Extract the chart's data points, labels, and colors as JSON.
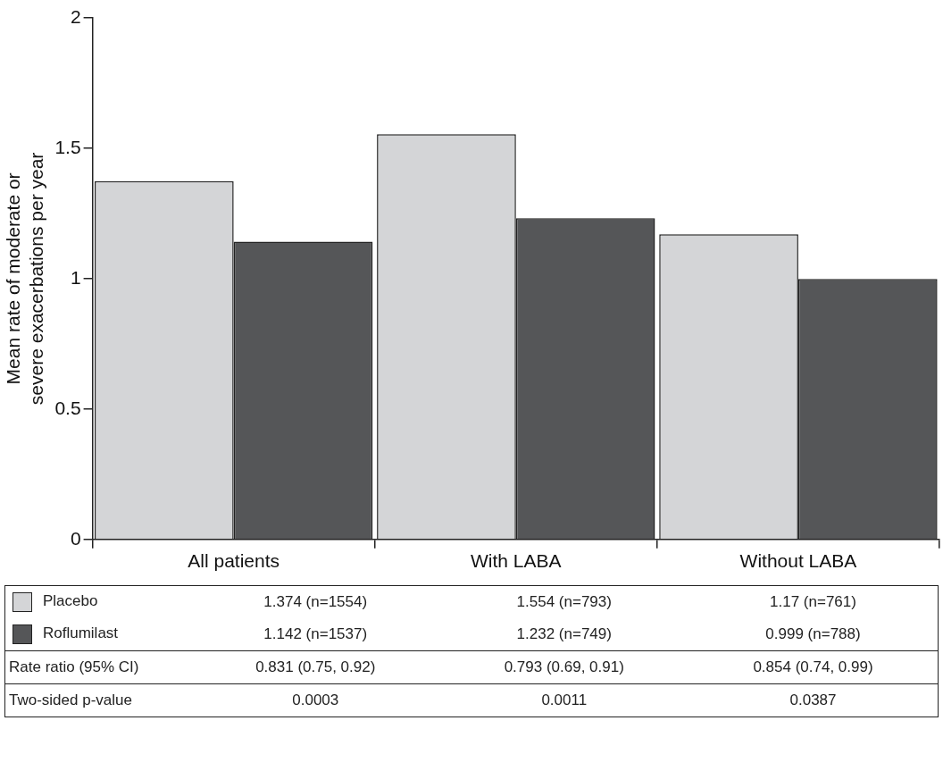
{
  "chart_data": {
    "type": "bar",
    "ylabel": "Mean rate of moderate or severe exacerbations per year",
    "categories": [
      "All patients",
      "With LABA",
      "Without LABA"
    ],
    "series": [
      {
        "name": "Placebo",
        "color": "#d4d5d7",
        "values": [
          1.374,
          1.554,
          1.17
        ],
        "value_labels": [
          "1.374 (n=1554)",
          "1.554 (n=793)",
          "1.17 (n=761)"
        ]
      },
      {
        "name": "Roflumilast",
        "color": "#555658",
        "values": [
          1.142,
          1.232,
          0.999
        ],
        "value_labels": [
          "1.142 (n=1537)",
          "1.232 (n=749)",
          "0.999 (n=788)"
        ]
      }
    ],
    "ylim": [
      0,
      2
    ],
    "yticks": [
      0,
      0.5,
      1,
      1.5,
      2
    ],
    "grid": false,
    "legend": "bottom",
    "annotations": [
      "Rate ratio (95% CI)",
      "0.831 (0.75, 0.92)",
      "0.793 (0.69, 0.91)",
      "0.854 (0.74, 0.99)",
      "Two-sided p-value",
      "0.0003",
      "0.0011",
      "0.0387"
    ]
  }
}
